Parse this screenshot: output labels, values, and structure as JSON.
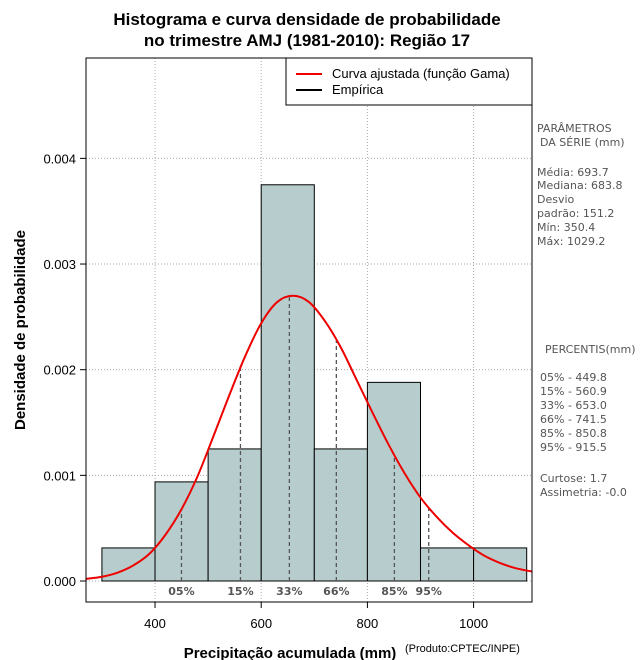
{
  "chart_data": {
    "type": "bar",
    "title_lines": [
      "Histograma e curva densidade de probabilidade",
      "no trimestre AMJ (1981-2010): Região 17"
    ],
    "xlabel": "Precipitação acumulada (mm)",
    "ylabel": "Densidade de probabilidade",
    "credit": "(Produto:CPTEC/INPE)",
    "xlim": [
      270,
      1110
    ],
    "ylim": [
      0,
      0.00495
    ],
    "xticks": [
      400,
      600,
      800,
      1000
    ],
    "xtick_labels": [
      "400",
      "600",
      "800",
      "1000"
    ],
    "yticks": [
      0,
      0.001,
      0.002,
      0.003,
      0.004
    ],
    "ytick_labels": [
      "0.000",
      "0.001",
      "0.002",
      "0.003",
      "0.004"
    ],
    "bins": [
      {
        "from": 300,
        "to": 400,
        "density": 0.000313
      },
      {
        "from": 400,
        "to": 500,
        "density": 0.000938
      },
      {
        "from": 500,
        "to": 600,
        "density": 0.00125
      },
      {
        "from": 600,
        "to": 700,
        "density": 0.00375
      },
      {
        "from": 700,
        "to": 800,
        "density": 0.00125
      },
      {
        "from": 800,
        "to": 900,
        "density": 0.00188
      },
      {
        "from": 900,
        "to": 1000,
        "density": 0.000313
      },
      {
        "from": 1000,
        "to": 1100,
        "density": 0.000313
      }
    ],
    "curve": {
      "name": "Curva ajustada (função Gama)",
      "x": [
        270,
        300,
        330,
        360,
        390,
        420,
        450,
        480,
        510,
        540,
        570,
        600,
        630,
        660,
        690,
        720,
        750,
        780,
        810,
        840,
        870,
        900,
        930,
        960,
        990,
        1020,
        1050,
        1080,
        1110
      ],
      "y": [
        2e-05,
        4e-05,
        8e-05,
        0.00015,
        0.00026,
        0.00044,
        0.00068,
        0.00099,
        0.00137,
        0.00176,
        0.00213,
        0.00244,
        0.00264,
        0.0027,
        0.00264,
        0.00246,
        0.00221,
        0.0019,
        0.00159,
        0.00129,
        0.00102,
        0.00079,
        0.00061,
        0.00046,
        0.00034,
        0.00024,
        0.00017,
        0.00012,
        9e-05
      ]
    },
    "legend": [
      {
        "label": "Curva ajustada (função Gama)",
        "color": "#ee0000"
      },
      {
        "label": "Empírica",
        "color": "#000000"
      }
    ],
    "percentile_marks": [
      {
        "label": "05%",
        "x": 449.8
      },
      {
        "label": "15%",
        "x": 560.9
      },
      {
        "label": "33%",
        "x": 653.0
      },
      {
        "label": "66%",
        "x": 741.5
      },
      {
        "label": "85%",
        "x": 850.8
      },
      {
        "label": "95%",
        "x": 915.5
      }
    ],
    "colors": {
      "bar_fill": "#b7cdcd",
      "curve": "#ee0000",
      "grid": "#aaaaaa",
      "dashes": "#555555"
    }
  },
  "side_panel": {
    "params_lines": [
      "PARÂMETROS",
      "DA SÉRIE (mm)"
    ],
    "stats_lines": [
      "Média:  693.7",
      "Mediana:  683.8",
      "Desvio",
      "padrão:  151.2",
      "Mín:  350.4",
      "Máx:  1029.2"
    ],
    "percentis_title": "PERCENTIS(mm)",
    "percentis_lines": [
      "05% -   449.8",
      "15% -   560.9",
      "33% -   653.0",
      "66% -   741.5",
      "85% -   850.8",
      "95% -   915.5"
    ],
    "shape_lines": [
      "Curtose:  1.7",
      "Assimetria:  -0.0"
    ]
  }
}
